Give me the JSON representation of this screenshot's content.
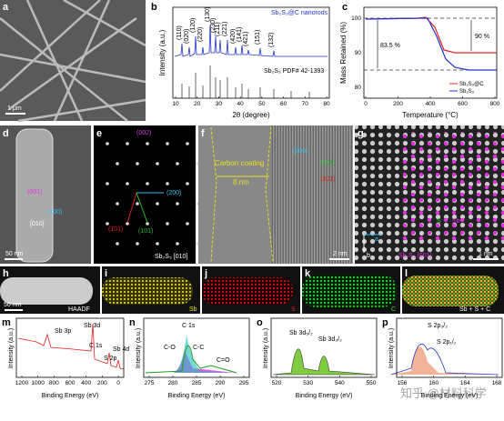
{
  "panels": {
    "a": {
      "label": "a",
      "scale": "1 μm"
    },
    "b": {
      "label": "b",
      "legend_top": "Sb₂S₃@C nanorods",
      "legend_ref": "Sb₂S₃ PDF# 42-1393",
      "peaks": [
        "(110)",
        "(020)",
        "(120)",
        "(220)",
        "(130)",
        "(230)",
        "(211)",
        "(221)",
        "(420)",
        "(141)",
        "(421)",
        "(151)",
        "(132)"
      ],
      "x_label": "2θ (degree)",
      "y_label": "Intensity (a.u.)",
      "x_ticks": [
        "10",
        "20",
        "30",
        "40",
        "50",
        "60",
        "70",
        "80"
      ]
    },
    "c": {
      "label": "c",
      "x_label": "Temperature (°C)",
      "y_label": "Mass Retained (%)",
      "y_ticks": [
        "100",
        "90",
        "80"
      ],
      "x_ticks": [
        "0",
        "200",
        "400",
        "600",
        "800"
      ],
      "note_left": "83.5 %",
      "note_right": "90 %",
      "legend": [
        "Sb₂S₃@C",
        "Sb₂S₃"
      ]
    },
    "d": {
      "label": "d",
      "spots": [
        "(001)",
        "(100)"
      ],
      "zone": "[010]",
      "scale": "50 nm"
    },
    "e": {
      "label": "e",
      "spots": [
        "(002)",
        "(200)",
        "(101)",
        "(101)"
      ],
      "zone": "Sb₂S₃ [010]"
    },
    "f": {
      "label": "f",
      "coating": "Carbon coating",
      "thickness": "8 nm",
      "spots": [
        "(200)",
        "(101)",
        "(301)"
      ],
      "scale": "2 nm"
    },
    "g": {
      "label": "g",
      "atoms": [
        "S",
        "Sb"
      ],
      "zone": "Sb₂S₃ [001]",
      "axes": [
        "a",
        "b"
      ],
      "scale": "1 nm"
    },
    "h": {
      "label": "h",
      "title": "HAADF",
      "scale": "50 nm"
    },
    "i": {
      "label": "i",
      "element": "Sb"
    },
    "j": {
      "label": "j",
      "element": "S"
    },
    "k": {
      "label": "k",
      "element": "C"
    },
    "l": {
      "label": "l",
      "element": "Sb + S + C"
    },
    "m": {
      "label": "m",
      "peaks": [
        "Sb 3d",
        "Sb 3p",
        "C 1s",
        "Sb 4d",
        "S 2p"
      ],
      "x_ticks": [
        "1200",
        "1000",
        "800",
        "600",
        "400",
        "200",
        "0"
      ],
      "x_label": "Binding Energy (eV)",
      "y_label": "Intensity (a.u.)"
    },
    "n": {
      "label": "n",
      "peaks": [
        "C 1s",
        "C-O",
        "C-C",
        "C=O"
      ],
      "x_ticks": [
        "275",
        "280",
        "285",
        "290",
        "295"
      ],
      "x_label": "Binding Energy (eV)",
      "y_label": "Intensity (a.u.)"
    },
    "o": {
      "label": "o",
      "peaks": [
        "Sb 3d₅/₂",
        "Sb 3d₃/₂"
      ],
      "x_ticks": [
        "520",
        "530",
        "540",
        "550"
      ],
      "x_label": "Binding Energy (eV)",
      "y_label": "Intensity (a.u.)"
    },
    "p": {
      "label": "p",
      "peaks": [
        "S 2p₃/₂",
        "S 2p₁/₂"
      ],
      "x_ticks": [
        "156",
        "160",
        "164",
        "168"
      ],
      "x_label": "Binding Energy (eV)",
      "y_label": "Intensity (a.u.)"
    }
  },
  "watermark": "知乎 @材料科学"
}
